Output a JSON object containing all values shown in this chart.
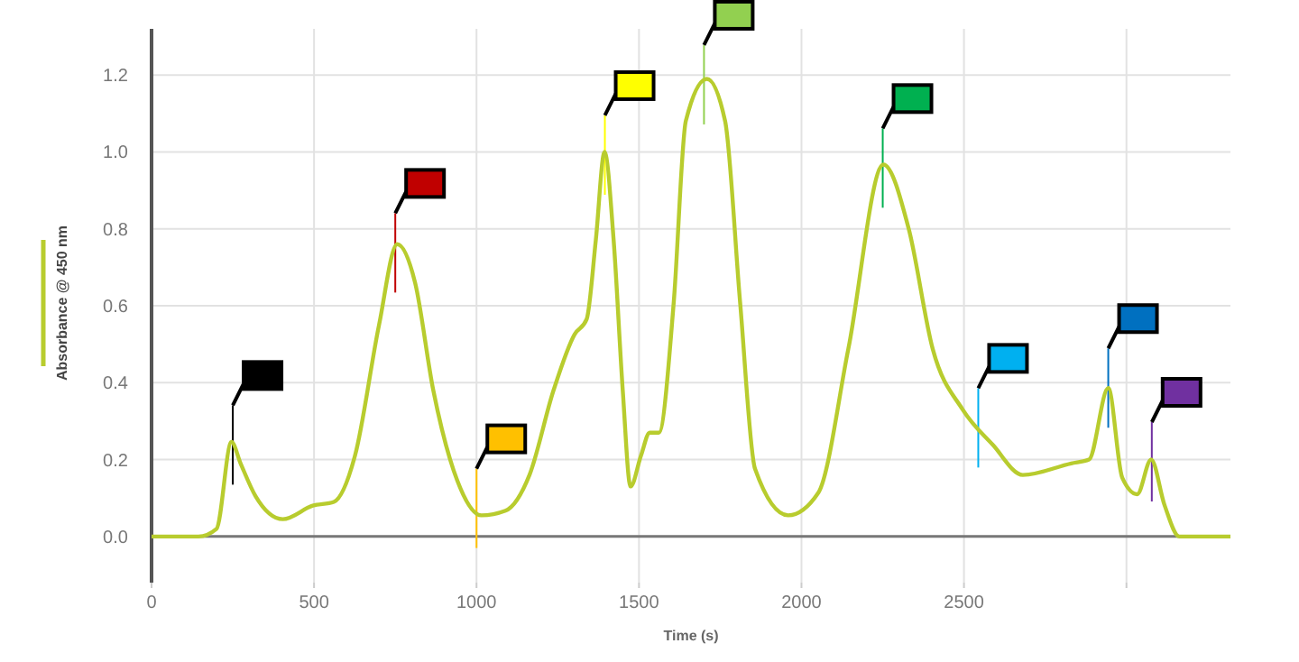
{
  "chart_data": {
    "type": "line",
    "xlabel": "Time (s)",
    "legend": "left",
    "grid": true,
    "marker": "none",
    "line_style": "solid",
    "xlim": [
      0,
      3320
    ],
    "ylim": [
      -0.12,
      1.32
    ],
    "xticks": [
      0,
      500,
      1000,
      1500,
      2000,
      2500,
      {
        "value": 3000,
        "label": null
      }
    ],
    "yticks": [
      {
        "value": 0,
        "label": "0.0"
      },
      0.2,
      0.4,
      0.6,
      0.8,
      {
        "value": 1,
        "label": "1.0"
      },
      1.2
    ],
    "series": [
      {
        "name": "Absorbance @ 450 nm",
        "color": "#b8cc2e",
        "x": [
          0,
          144,
          200,
          246,
          274,
          320,
          404,
          496,
          561,
          626,
          700,
          756,
          811,
          867,
          941,
          1015,
          1089,
          1163,
          1237,
          1302,
          1339,
          1367,
          1394,
          1422,
          1450,
          1474,
          1506,
          1533,
          1561,
          1607,
          1644,
          1709,
          1765,
          1811,
          1857,
          1959,
          2052,
          2144,
          2252,
          2330,
          2404,
          2496,
          2589,
          2681,
          2830,
          2885,
          2944,
          2987,
          3033,
          3076,
          3117,
          3163,
          3320
        ],
        "values": [
          0,
          0,
          0.02,
          0.246,
          0.19,
          0.105,
          0.045,
          0.08,
          0.09,
          0.21,
          0.55,
          0.76,
          0.66,
          0.38,
          0.145,
          0.055,
          0.067,
          0.16,
          0.38,
          0.526,
          0.565,
          0.77,
          1.0,
          0.77,
          0.38,
          0.13,
          0.21,
          0.27,
          0.27,
          0.61,
          1.08,
          1.19,
          1.08,
          0.61,
          0.176,
          0.055,
          0.114,
          0.487,
          0.967,
          0.8,
          0.487,
          0.33,
          0.238,
          0.16,
          0.19,
          0.2,
          0.386,
          0.153,
          0.11,
          0.2,
          0.082,
          0,
          0
        ]
      }
    ],
    "ref_lines": [
      {
        "axis": "y",
        "value": 0,
        "color": "#777777"
      },
      {
        "axis": "x",
        "value": 250,
        "color": "#000000"
      },
      {
        "axis": "x",
        "value": 750,
        "color": "#c00000"
      },
      {
        "axis": "x",
        "value": 1000,
        "color": "#ffc000"
      },
      {
        "axis": "x",
        "value": 1395,
        "color": "#ffff00"
      },
      {
        "axis": "x",
        "value": 1700,
        "color": "#92d050"
      },
      {
        "axis": "x",
        "value": 2250,
        "color": "#00b050"
      },
      {
        "axis": "x",
        "value": 2544,
        "color": "#00b0f0"
      },
      {
        "axis": "x",
        "value": 2944,
        "color": "#0070c0"
      },
      {
        "axis": "x",
        "value": 3078,
        "color": "#7030a0"
      }
    ]
  }
}
